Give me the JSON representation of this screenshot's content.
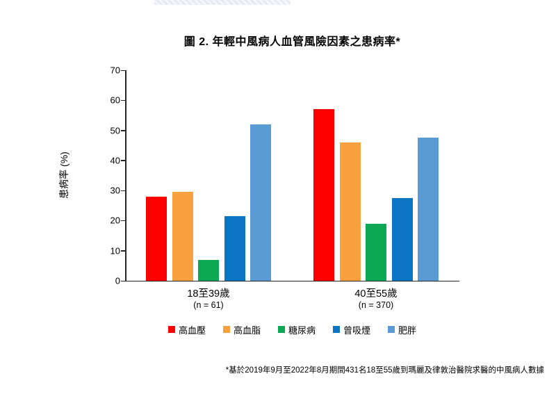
{
  "title": "圖 2. 年輕中風病人血管風險因素之患病率*",
  "y_axis": {
    "label": "患病率 (%)",
    "ticks": [
      0,
      10,
      20,
      30,
      40,
      50,
      60,
      70
    ],
    "max": 70
  },
  "groups": [
    {
      "label": "18至39歲",
      "sublabel": "(n = 61)"
    },
    {
      "label": "40至55歲",
      "sublabel": "(n = 370)"
    }
  ],
  "footnote": "*基於2019年9月至2022年8月期間431名18至55歲到瑪麗及律敦治醫院求醫的中風病人數據",
  "colors": {
    "hypertension": "#FF0000",
    "hyperlipidemia": "#F9A13E",
    "diabetes": "#0DA853",
    "ever_smoked": "#0B74C4",
    "obesity": "#5B9BD5",
    "axis": "#262626"
  },
  "chart_data": {
    "type": "bar",
    "title": "圖 2. 年輕中風病人血管風險因素之患病率*",
    "xlabel": "",
    "ylabel": "患病率 (%)",
    "ylim": [
      0,
      70
    ],
    "grid": false,
    "legend_position": "bottom",
    "categories": [
      "18至39歲 (n = 61)",
      "40至55歲 (n = 370)"
    ],
    "series": [
      {
        "key": "hypertension",
        "name": "高血壓",
        "color": "#FF0000",
        "values": [
          28,
          57
        ]
      },
      {
        "key": "hyperlipidemia",
        "name": "高血脂",
        "color": "#F9A13E",
        "values": [
          29.5,
          46
        ]
      },
      {
        "key": "diabetes",
        "name": "糖尿病",
        "color": "#0DA853",
        "values": [
          7,
          19
        ]
      },
      {
        "key": "ever_smoked",
        "name": "曾吸煙",
        "color": "#0B74C4",
        "values": [
          21.5,
          27.5
        ]
      },
      {
        "key": "obesity",
        "name": "肥胖",
        "color": "#5B9BD5",
        "values": [
          52,
          47.5
        ]
      }
    ]
  }
}
